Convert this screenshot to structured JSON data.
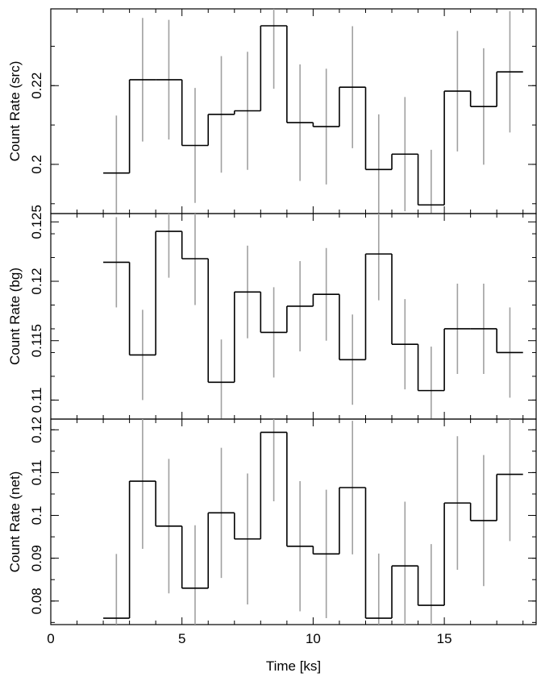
{
  "chart_data": [
    {
      "type": "line",
      "panel": "src",
      "ylabel": "Count Rate (src)",
      "ylim": [
        0.1875,
        0.2395
      ],
      "yticks": [
        0.2,
        0.22
      ],
      "ytick_labels": [
        "0.2",
        "0.22"
      ],
      "xlim": [
        0,
        18.5
      ],
      "bin_width": 1.0,
      "series": [
        {
          "x": [
            2.5,
            3.5,
            4.5,
            5.5,
            6.5,
            7.5,
            8.5,
            9.5,
            10.5,
            11.5,
            12.5,
            13.5,
            14.5,
            15.5,
            16.5,
            17.5
          ],
          "values": [
            0.1978,
            0.2215,
            0.2215,
            0.2048,
            0.2127,
            0.2136,
            0.2352,
            0.2106,
            0.2096,
            0.2196,
            0.1987,
            0.2026,
            0.1897,
            0.2186,
            0.2147,
            0.2235
          ],
          "err": [
            0.0146,
            0.0157,
            0.0152,
            0.0146,
            0.0148,
            0.015,
            0.016,
            0.0148,
            0.0147,
            0.0155,
            0.014,
            0.0145,
            0.014,
            0.0153,
            0.0148,
            0.0154
          ]
        }
      ]
    },
    {
      "type": "line",
      "panel": "bg",
      "ylabel": "Count Rate (bg)",
      "ylim": [
        0.1084,
        0.1257
      ],
      "yticks": [
        0.11,
        0.115,
        0.12,
        0.125
      ],
      "ytick_labels": [
        "0.11",
        "0.115",
        "0.12",
        "0.125"
      ],
      "xlim": [
        0,
        18.5
      ],
      "bin_width": 1.0,
      "series": [
        {
          "x": [
            2.5,
            3.5,
            4.5,
            5.5,
            6.5,
            7.5,
            8.5,
            9.5,
            10.5,
            11.5,
            12.5,
            13.5,
            14.5,
            15.5,
            16.5,
            17.5
          ],
          "values": [
            0.1216,
            0.1138,
            0.1242,
            0.1219,
            0.1115,
            0.1191,
            0.1157,
            0.1179,
            0.1189,
            0.1134,
            0.1223,
            0.1147,
            0.1108,
            0.116,
            0.116,
            0.114
          ],
          "err": [
            0.0038,
            0.0038,
            0.0039,
            0.0039,
            0.0036,
            0.0039,
            0.0038,
            0.0038,
            0.0039,
            0.0038,
            0.0039,
            0.0038,
            0.0037,
            0.0038,
            0.0038,
            0.0038
          ]
        }
      ]
    },
    {
      "type": "line",
      "panel": "net",
      "ylabel": "Count Rate (net)",
      "ylim": [
        0.0745,
        0.1225
      ],
      "yticks": [
        0.08,
        0.09,
        0.1,
        0.11,
        0.12
      ],
      "ytick_labels": [
        "0.08",
        "0.09",
        "0.1",
        "0.11",
        "0.12"
      ],
      "xlim": [
        0,
        18.5
      ],
      "xticks": [
        0,
        5,
        10,
        15
      ],
      "xtick_labels": [
        "0",
        "5",
        "10",
        "15"
      ],
      "xlabel": "Time [ks]",
      "bin_width": 1.0,
      "series": [
        {
          "x": [
            2.5,
            3.5,
            4.5,
            5.5,
            6.5,
            7.5,
            8.5,
            9.5,
            10.5,
            11.5,
            12.5,
            13.5,
            14.5,
            15.5,
            16.5,
            17.5
          ],
          "values": [
            0.076,
            0.108,
            0.0975,
            0.083,
            0.1006,
            0.0945,
            0.1194,
            0.0928,
            0.091,
            0.1065,
            0.076,
            0.0882,
            0.079,
            0.1029,
            0.0988,
            0.1096
          ],
          "err": [
            0.015,
            0.0158,
            0.0157,
            0.0147,
            0.0152,
            0.0153,
            0.0161,
            0.0152,
            0.015,
            0.0156,
            0.0151,
            0.015,
            0.0143,
            0.0156,
            0.0153,
            0.0156
          ]
        }
      ]
    }
  ],
  "colors": {
    "step": "#000000",
    "errorbar": "#a0a0a0",
    "frame": "#000000"
  }
}
